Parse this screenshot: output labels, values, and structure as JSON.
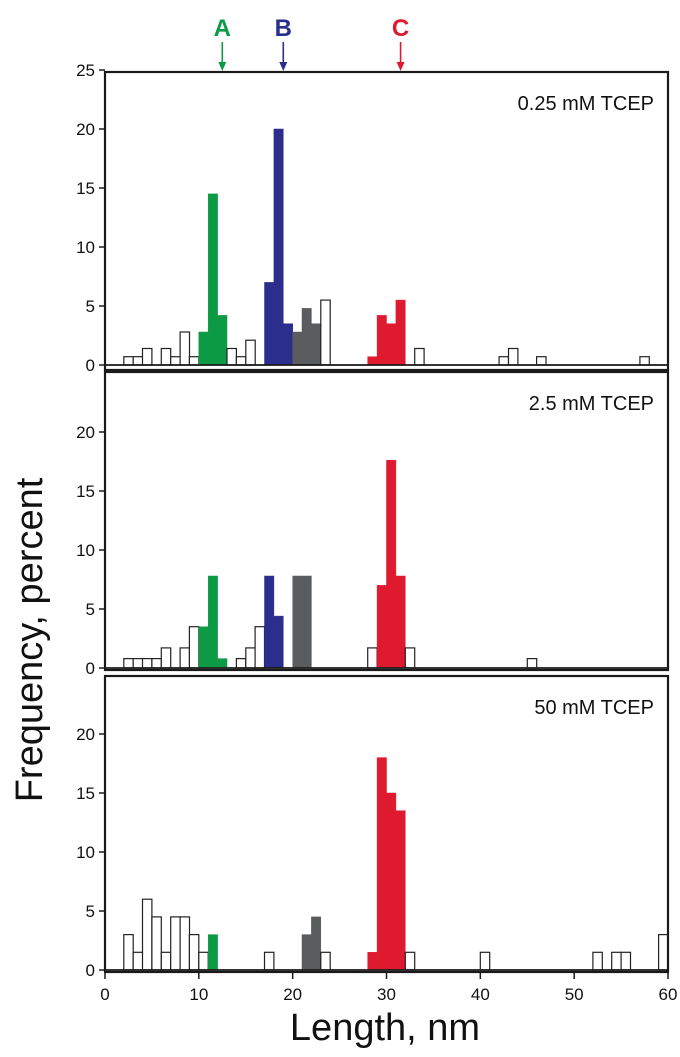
{
  "chart_data": {
    "type": "bar",
    "xlabel": "Length, nm",
    "ylabel": "Frequency, percent",
    "xlim": [
      0,
      60
    ],
    "xticks": [
      "0",
      "10",
      "20",
      "30",
      "40",
      "50",
      "60"
    ],
    "yticks": [
      {
        "label": "0",
        "value": 0
      },
      {
        "label": "5",
        "value": 5
      },
      {
        "label": "10",
        "value": 10
      },
      {
        "label": "15",
        "value": 15
      },
      {
        "label": "20",
        "value": 20
      }
    ],
    "top_ytick": {
      "label": "25",
      "value": 25
    },
    "bin_width_nm": 1,
    "colors": {
      "A": "#0d9a44",
      "B": "#2b2e8c",
      "C": "#e01a2e",
      "gray": "#5a5c5e",
      "open": "#ffffff"
    },
    "markers": [
      {
        "label": "A",
        "x": 12.5,
        "color": "#0d9a44"
      },
      {
        "label": "B",
        "x": 19,
        "color": "#2b2e8c"
      },
      {
        "label": "C",
        "x": 31.5,
        "color": "#e01a2e"
      }
    ],
    "panels": [
      {
        "title": "0.25 mM TCEP",
        "ylim": [
          0,
          25
        ],
        "bars": [
          {
            "x": 3,
            "y": 0.7,
            "fill": "open"
          },
          {
            "x": 4,
            "y": 0.7,
            "fill": "open"
          },
          {
            "x": 5,
            "y": 1.4,
            "fill": "open"
          },
          {
            "x": 7,
            "y": 1.4,
            "fill": "open"
          },
          {
            "x": 8,
            "y": 0.7,
            "fill": "open"
          },
          {
            "x": 9,
            "y": 2.8,
            "fill": "open"
          },
          {
            "x": 10,
            "y": 0.7,
            "fill": "open"
          },
          {
            "x": 11,
            "y": 2.8,
            "fill": "A"
          },
          {
            "x": 12,
            "y": 14.5,
            "fill": "A"
          },
          {
            "x": 13,
            "y": 4.2,
            "fill": "A"
          },
          {
            "x": 14,
            "y": 1.4,
            "fill": "open"
          },
          {
            "x": 15,
            "y": 0.7,
            "fill": "open"
          },
          {
            "x": 16,
            "y": 2.1,
            "fill": "open"
          },
          {
            "x": 18,
            "y": 7,
            "fill": "B"
          },
          {
            "x": 19,
            "y": 20,
            "fill": "B"
          },
          {
            "x": 20,
            "y": 3.5,
            "fill": "B"
          },
          {
            "x": 21,
            "y": 2.8,
            "fill": "gray"
          },
          {
            "x": 22,
            "y": 4.8,
            "fill": "gray"
          },
          {
            "x": 23,
            "y": 3.5,
            "fill": "gray"
          },
          {
            "x": 24,
            "y": 5.5,
            "fill": "open"
          },
          {
            "x": 29,
            "y": 0.7,
            "fill": "C"
          },
          {
            "x": 30,
            "y": 4.2,
            "fill": "C"
          },
          {
            "x": 31,
            "y": 3.5,
            "fill": "C"
          },
          {
            "x": 32,
            "y": 5.5,
            "fill": "C"
          },
          {
            "x": 34,
            "y": 1.4,
            "fill": "open"
          },
          {
            "x": 43,
            "y": 0.7,
            "fill": "open"
          },
          {
            "x": 44,
            "y": 1.4,
            "fill": "open"
          },
          {
            "x": 47,
            "y": 0.7,
            "fill": "open"
          },
          {
            "x": 58,
            "y": 0.7,
            "fill": "open"
          }
        ]
      },
      {
        "title": "2.5 mM TCEP",
        "ylim": [
          0,
          25
        ],
        "bars": [
          {
            "x": 3,
            "y": 0.8,
            "fill": "open"
          },
          {
            "x": 4,
            "y": 0.8,
            "fill": "open"
          },
          {
            "x": 5,
            "y": 0.8,
            "fill": "open"
          },
          {
            "x": 6,
            "y": 0.8,
            "fill": "open"
          },
          {
            "x": 7,
            "y": 1.7,
            "fill": "open"
          },
          {
            "x": 9,
            "y": 1.7,
            "fill": "open"
          },
          {
            "x": 10,
            "y": 3.5,
            "fill": "open"
          },
          {
            "x": 11,
            "y": 3.5,
            "fill": "A"
          },
          {
            "x": 12,
            "y": 7.8,
            "fill": "A"
          },
          {
            "x": 13,
            "y": 0.8,
            "fill": "A"
          },
          {
            "x": 15,
            "y": 0.8,
            "fill": "open"
          },
          {
            "x": 16,
            "y": 1.7,
            "fill": "open"
          },
          {
            "x": 17,
            "y": 3.5,
            "fill": "open"
          },
          {
            "x": 18,
            "y": 7.8,
            "fill": "B"
          },
          {
            "x": 19,
            "y": 4.4,
            "fill": "B"
          },
          {
            "x": 21,
            "y": 7.8,
            "fill": "gray"
          },
          {
            "x": 22,
            "y": 7.8,
            "fill": "gray"
          },
          {
            "x": 29,
            "y": 1.7,
            "fill": "open"
          },
          {
            "x": 30,
            "y": 7,
            "fill": "C"
          },
          {
            "x": 31,
            "y": 17.6,
            "fill": "C"
          },
          {
            "x": 32,
            "y": 7.8,
            "fill": "C"
          },
          {
            "x": 33,
            "y": 1.7,
            "fill": "open"
          },
          {
            "x": 46,
            "y": 0.8,
            "fill": "open"
          }
        ]
      },
      {
        "title": "50 mM TCEP",
        "ylim": [
          0,
          25
        ],
        "bars": [
          {
            "x": 3,
            "y": 3,
            "fill": "open"
          },
          {
            "x": 4,
            "y": 1.5,
            "fill": "open"
          },
          {
            "x": 5,
            "y": 6,
            "fill": "open"
          },
          {
            "x": 6,
            "y": 4.5,
            "fill": "open"
          },
          {
            "x": 7,
            "y": 1.5,
            "fill": "open"
          },
          {
            "x": 8,
            "y": 4.5,
            "fill": "open"
          },
          {
            "x": 9,
            "y": 4.5,
            "fill": "open"
          },
          {
            "x": 10,
            "y": 3,
            "fill": "open"
          },
          {
            "x": 11,
            "y": 1.5,
            "fill": "open"
          },
          {
            "x": 12,
            "y": 3,
            "fill": "A"
          },
          {
            "x": 18,
            "y": 1.5,
            "fill": "open"
          },
          {
            "x": 22,
            "y": 3,
            "fill": "gray"
          },
          {
            "x": 23,
            "y": 4.5,
            "fill": "gray"
          },
          {
            "x": 24,
            "y": 1.5,
            "fill": "open"
          },
          {
            "x": 29,
            "y": 1.5,
            "fill": "C"
          },
          {
            "x": 30,
            "y": 18,
            "fill": "C"
          },
          {
            "x": 31,
            "y": 15,
            "fill": "C"
          },
          {
            "x": 32,
            "y": 13.5,
            "fill": "C"
          },
          {
            "x": 33,
            "y": 1.5,
            "fill": "open"
          },
          {
            "x": 41,
            "y": 1.5,
            "fill": "open"
          },
          {
            "x": 53,
            "y": 1.5,
            "fill": "open"
          },
          {
            "x": 55,
            "y": 1.5,
            "fill": "open"
          },
          {
            "x": 56,
            "y": 1.5,
            "fill": "open"
          },
          {
            "x": 60,
            "y": 3,
            "fill": "open"
          }
        ]
      }
    ]
  }
}
